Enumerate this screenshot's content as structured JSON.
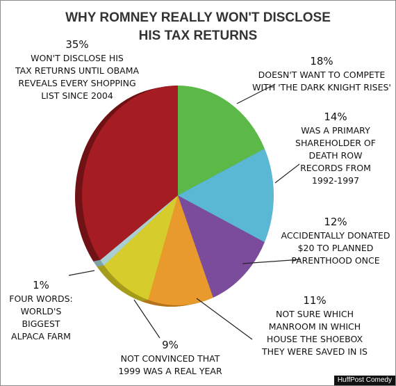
{
  "chart_data": {
    "type": "pie",
    "title_lines": [
      "WHY ROMNEY REALLY WON'T DISCLOSE",
      "HIS TAX RETURNS"
    ],
    "slices": [
      {
        "key": "dark-knight",
        "value": 18,
        "percent_label": "18%",
        "label_lines": [
          "DOESN'T WANT TO COMPETE",
          "WITH 'THE DARK KNIGHT RISES'"
        ],
        "color": "#5cb947",
        "shade": "#3f8a31"
      },
      {
        "key": "death-row",
        "value": 14,
        "percent_label": "14%",
        "label_lines": [
          "WAS A PRIMARY",
          "SHAREHOLDER OF",
          "DEATH ROW",
          "RECORDS FROM",
          "1992-1997"
        ],
        "color": "#5bb8d4",
        "shade": "#3a8aa3"
      },
      {
        "key": "planned-parenthood",
        "value": 12,
        "percent_label": "12%",
        "label_lines": [
          "ACCIDENTALLY DONATED",
          "$20 TO PLANNED",
          "PARENTHOOD ONCE"
        ],
        "color": "#7c4c9c",
        "shade": "#5a3573"
      },
      {
        "key": "shoebox",
        "value": 11,
        "percent_label": "11%",
        "label_lines": [
          "NOT SURE WHICH",
          "MANROOM IN WHICH",
          "HOUSE THE SHOEBOX",
          "THEY WERE SAVED IN IS"
        ],
        "color": "#e89a2c",
        "shade": "#b5741c"
      },
      {
        "key": "1999",
        "value": 9,
        "percent_label": "9%",
        "label_lines": [
          "NOT CONVINCED THAT",
          "1999 WAS A REAL YEAR"
        ],
        "color": "#d6cc2b",
        "shade": "#a59c1c"
      },
      {
        "key": "alpaca",
        "value": 1,
        "percent_label": "1%",
        "label_lines": [
          "FOUR WORDS:",
          "WORLD'S",
          "BIGGEST",
          "ALPACA FARM"
        ],
        "color": "#a9cfd3",
        "shade": "#7ea4a8"
      },
      {
        "key": "obama-shopping",
        "value": 35,
        "percent_label": "35%",
        "label_lines": [
          "WON'T DISCLOSE HIS",
          "TAX RETURNS UNTIL OBAMA",
          "REVEALS EVERY SHOPPING",
          "LIST SINCE 2004"
        ],
        "color": "#a51d22",
        "shade": "#701316"
      }
    ]
  },
  "credit": "HuffPost Comedy"
}
